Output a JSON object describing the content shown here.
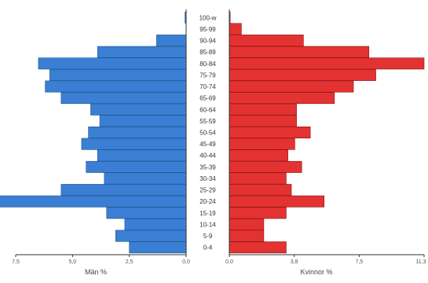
{
  "chart_data": {
    "type": "bar",
    "orientation": "horizontal-population-pyramid",
    "categories": [
      "0-4",
      "5-9",
      "10-14",
      "15-19",
      "20-24",
      "25-29",
      "30-34",
      "35-39",
      "40-44",
      "45-49",
      "50-54",
      "55-59",
      "60-64",
      "65-69",
      "70-74",
      "75-79",
      "80-84",
      "85-89",
      "90-94",
      "95-99",
      "100-w"
    ],
    "series": [
      {
        "name": "Män %",
        "color": "#3b7fd4",
        "values": [
          2.5,
          3.1,
          2.7,
          3.5,
          8.4,
          5.5,
          3.6,
          4.4,
          3.9,
          4.6,
          4.3,
          3.8,
          4.2,
          5.5,
          6.2,
          6.0,
          6.5,
          3.9,
          1.3,
          0,
          0.05
        ]
      },
      {
        "name": "Kvinnor %",
        "color": "#e33232",
        "values": [
          3.3,
          2.0,
          2.0,
          3.3,
          5.5,
          3.6,
          3.3,
          4.2,
          3.4,
          3.8,
          4.7,
          3.9,
          3.9,
          6.1,
          7.2,
          8.5,
          11.3,
          8.1,
          4.3,
          0.7,
          0.05
        ]
      }
    ],
    "left_axis": {
      "ticks": [
        "7,5",
        "5,0",
        "2,5",
        "0,0"
      ],
      "label": "Män %"
    },
    "right_axis": {
      "ticks": [
        "0,0",
        "3,8",
        "7,5",
        "11,3"
      ],
      "label": "Kvinnor %"
    },
    "left_max": 7.5,
    "right_max": 11.3
  }
}
